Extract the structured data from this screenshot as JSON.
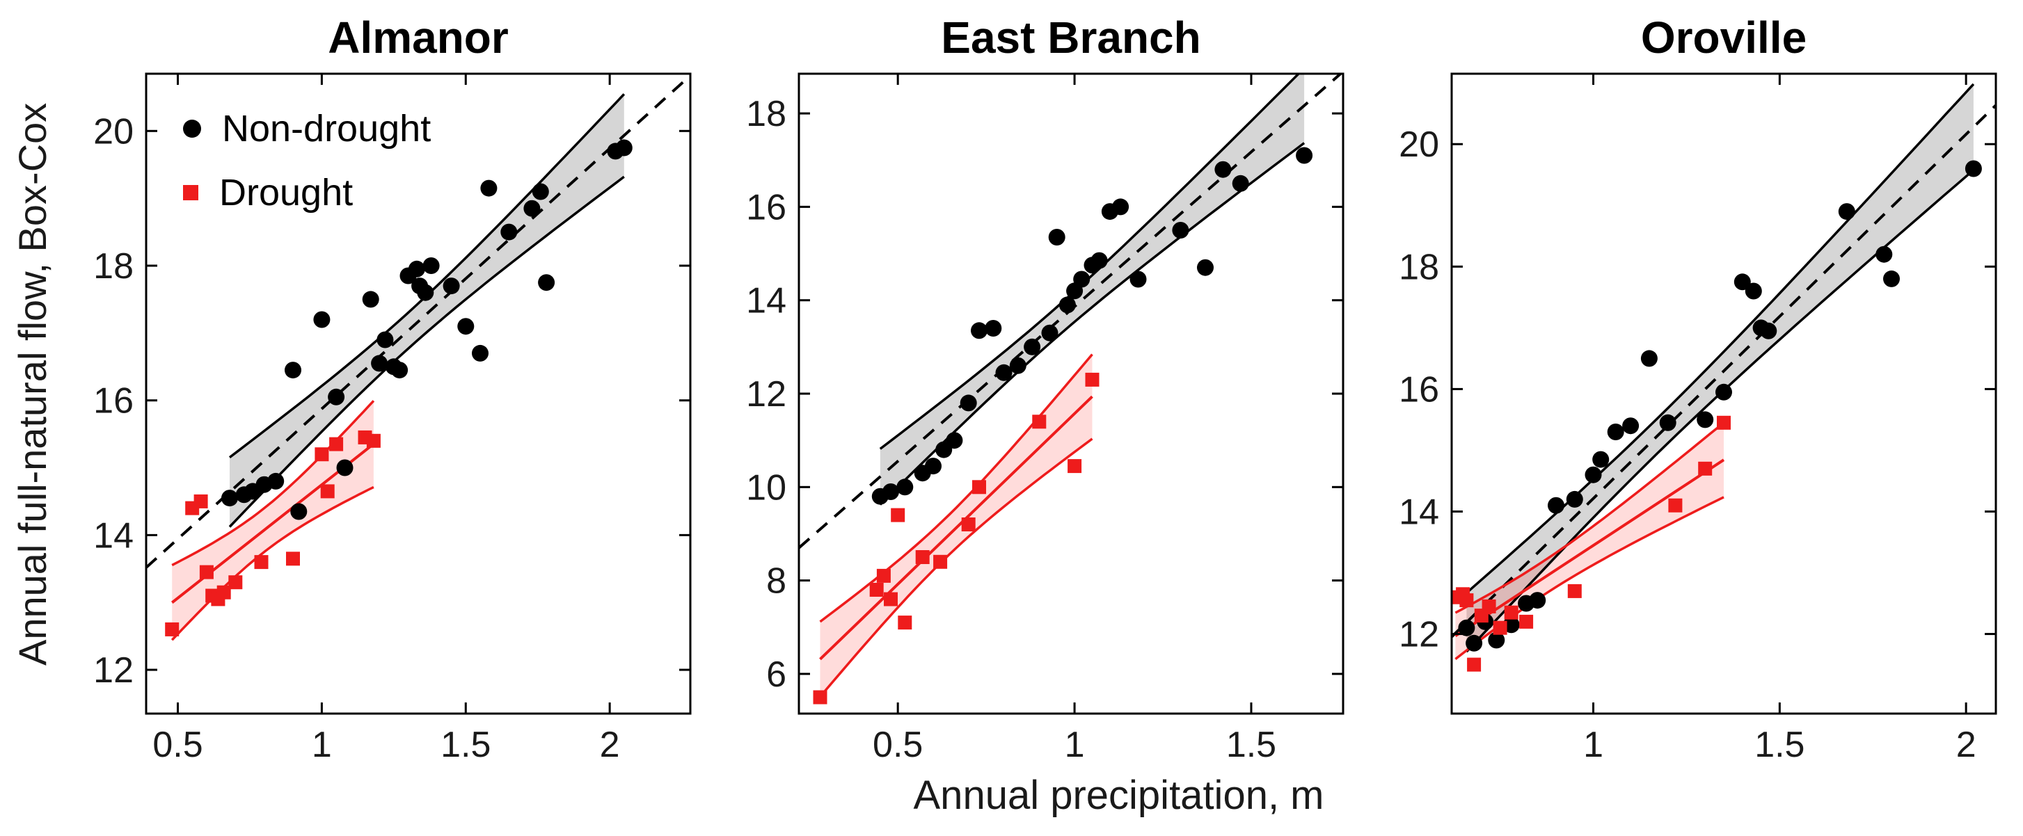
{
  "figure": {
    "xlabel": "Annual precipitation, m",
    "ylabel": "Annual full-natural flow, Box-Cox",
    "background": "#ffffff",
    "axis_color": "#000000",
    "tick_label_color": "#1a1a1a",
    "legend": {
      "items": [
        {
          "label": "Non-drought",
          "marker": "circle",
          "color": "#000000"
        },
        {
          "label": "Drought",
          "marker": "square",
          "color": "#ee1c1c"
        }
      ]
    }
  },
  "chart_data": [
    {
      "type": "scatter",
      "title": "Almanor",
      "xlim": [
        0.39,
        2.28
      ],
      "ylim": [
        11.35,
        20.85
      ],
      "xtick_values": [
        0.5,
        1,
        1.5,
        2
      ],
      "xtick_labels": [
        "0.5",
        "1",
        "1.5",
        "2"
      ],
      "ytick_values": [
        12,
        14,
        16,
        18,
        20
      ],
      "ytick_labels": [
        "12",
        "14",
        "16",
        "18",
        "20"
      ],
      "series": [
        {
          "name": "Non-drought",
          "marker": "circle",
          "color": "#000000",
          "band_color": "rgba(0,0,0,0.16)",
          "line_style": "dashed",
          "line_extends_full_range": true,
          "points": [
            [
              0.68,
              14.55
            ],
            [
              0.73,
              14.6
            ],
            [
              0.76,
              14.65
            ],
            [
              0.8,
              14.75
            ],
            [
              0.84,
              14.8
            ],
            [
              0.9,
              16.45
            ],
            [
              0.92,
              14.35
            ],
            [
              1.0,
              17.2
            ],
            [
              1.05,
              16.05
            ],
            [
              1.08,
              15.0
            ],
            [
              1.17,
              17.5
            ],
            [
              1.2,
              16.55
            ],
            [
              1.22,
              16.9
            ],
            [
              1.25,
              16.5
            ],
            [
              1.27,
              16.45
            ],
            [
              1.3,
              17.85
            ],
            [
              1.33,
              17.95
            ],
            [
              1.34,
              17.7
            ],
            [
              1.36,
              17.6
            ],
            [
              1.38,
              18.0
            ],
            [
              1.45,
              17.7
            ],
            [
              1.5,
              17.1
            ],
            [
              1.55,
              16.7
            ],
            [
              1.58,
              19.15
            ],
            [
              1.65,
              18.5
            ],
            [
              1.73,
              18.85
            ],
            [
              1.76,
              19.1
            ],
            [
              1.78,
              17.75
            ],
            [
              2.02,
              19.7
            ],
            [
              2.05,
              19.75
            ]
          ]
        },
        {
          "name": "Drought",
          "marker": "square",
          "color": "#ee1c1c",
          "band_color": "rgba(255,40,30,0.16)",
          "line_style": "solid",
          "line_extends_full_range": false,
          "points": [
            [
              0.48,
              12.6
            ],
            [
              0.55,
              14.4
            ],
            [
              0.58,
              14.5
            ],
            [
              0.6,
              13.45
            ],
            [
              0.62,
              13.1
            ],
            [
              0.64,
              13.05
            ],
            [
              0.66,
              13.15
            ],
            [
              0.7,
              13.3
            ],
            [
              0.79,
              13.6
            ],
            [
              0.9,
              13.65
            ],
            [
              1.0,
              15.2
            ],
            [
              1.02,
              14.65
            ],
            [
              1.05,
              15.35
            ],
            [
              1.15,
              15.45
            ],
            [
              1.18,
              15.4
            ]
          ]
        }
      ]
    },
    {
      "type": "scatter",
      "title": "East Branch",
      "xlim": [
        0.22,
        1.76
      ],
      "ylim": [
        5.15,
        18.85
      ],
      "xtick_values": [
        0.5,
        1,
        1.5
      ],
      "xtick_labels": [
        "0.5",
        "1",
        "1.5"
      ],
      "ytick_values": [
        6,
        8,
        10,
        12,
        14,
        16,
        18
      ],
      "ytick_labels": [
        "6",
        "8",
        "10",
        "12",
        "14",
        "16",
        "18"
      ],
      "series": [
        {
          "name": "Non-drought",
          "marker": "circle",
          "color": "#000000",
          "band_color": "rgba(0,0,0,0.16)",
          "line_style": "dashed",
          "line_extends_full_range": true,
          "points": [
            [
              0.45,
              9.8
            ],
            [
              0.48,
              9.9
            ],
            [
              0.52,
              10.0
            ],
            [
              0.57,
              10.3
            ],
            [
              0.6,
              10.45
            ],
            [
              0.63,
              10.8
            ],
            [
              0.66,
              11.0
            ],
            [
              0.7,
              11.8
            ],
            [
              0.73,
              13.35
            ],
            [
              0.77,
              13.4
            ],
            [
              0.8,
              12.45
            ],
            [
              0.84,
              12.6
            ],
            [
              0.88,
              13.0
            ],
            [
              0.93,
              13.3
            ],
            [
              0.95,
              15.35
            ],
            [
              0.98,
              13.9
            ],
            [
              1.0,
              14.2
            ],
            [
              1.02,
              14.45
            ],
            [
              1.05,
              14.75
            ],
            [
              1.07,
              14.85
            ],
            [
              1.1,
              15.9
            ],
            [
              1.13,
              16.0
            ],
            [
              1.18,
              14.45
            ],
            [
              1.3,
              15.5
            ],
            [
              1.37,
              14.7
            ],
            [
              1.42,
              16.8
            ],
            [
              1.47,
              16.5
            ],
            [
              1.65,
              17.1
            ]
          ]
        },
        {
          "name": "Drought",
          "marker": "square",
          "color": "#ee1c1c",
          "band_color": "rgba(255,40,30,0.16)",
          "line_style": "solid",
          "line_extends_full_range": false,
          "points": [
            [
              0.28,
              5.5
            ],
            [
              0.44,
              7.8
            ],
            [
              0.46,
              8.1
            ],
            [
              0.48,
              7.6
            ],
            [
              0.5,
              9.4
            ],
            [
              0.52,
              7.1
            ],
            [
              0.57,
              8.5
            ],
            [
              0.62,
              8.4
            ],
            [
              0.7,
              9.2
            ],
            [
              0.73,
              10.0
            ],
            [
              0.9,
              11.4
            ],
            [
              1.0,
              10.45
            ],
            [
              1.05,
              12.3
            ]
          ]
        }
      ]
    },
    {
      "type": "scatter",
      "title": "Oroville",
      "xlim": [
        0.62,
        2.08
      ],
      "ylim": [
        10.7,
        21.15
      ],
      "xtick_values": [
        1,
        1.5,
        2
      ],
      "xtick_labels": [
        "1",
        "1.5",
        "2"
      ],
      "ytick_values": [
        12,
        14,
        16,
        18,
        20
      ],
      "ytick_labels": [
        "12",
        "14",
        "16",
        "18",
        "20"
      ],
      "series": [
        {
          "name": "Non-drought",
          "marker": "circle",
          "color": "#000000",
          "band_color": "rgba(0,0,0,0.16)",
          "line_style": "dashed",
          "line_extends_full_range": true,
          "points": [
            [
              0.66,
              12.1
            ],
            [
              0.68,
              11.85
            ],
            [
              0.71,
              12.2
            ],
            [
              0.74,
              11.9
            ],
            [
              0.78,
              12.15
            ],
            [
              0.82,
              12.5
            ],
            [
              0.85,
              12.55
            ],
            [
              0.9,
              14.1
            ],
            [
              0.95,
              14.2
            ],
            [
              1.0,
              14.6
            ],
            [
              1.02,
              14.85
            ],
            [
              1.06,
              15.3
            ],
            [
              1.1,
              15.4
            ],
            [
              1.15,
              16.5
            ],
            [
              1.2,
              15.45
            ],
            [
              1.3,
              15.5
            ],
            [
              1.35,
              15.95
            ],
            [
              1.4,
              17.75
            ],
            [
              1.43,
              17.6
            ],
            [
              1.45,
              17.0
            ],
            [
              1.47,
              16.95
            ],
            [
              1.68,
              18.9
            ],
            [
              1.78,
              18.2
            ],
            [
              1.8,
              17.8
            ],
            [
              2.02,
              19.6
            ]
          ]
        },
        {
          "name": "Drought",
          "marker": "square",
          "color": "#ee1c1c",
          "band_color": "rgba(255,40,30,0.16)",
          "line_style": "solid",
          "line_extends_full_range": false,
          "points": [
            [
              0.63,
              12.6
            ],
            [
              0.65,
              12.65
            ],
            [
              0.66,
              12.55
            ],
            [
              0.68,
              11.5
            ],
            [
              0.7,
              12.3
            ],
            [
              0.72,
              12.45
            ],
            [
              0.75,
              12.1
            ],
            [
              0.78,
              12.35
            ],
            [
              0.82,
              12.2
            ],
            [
              0.95,
              12.7
            ],
            [
              1.22,
              14.1
            ],
            [
              1.3,
              14.7
            ],
            [
              1.35,
              15.45
            ]
          ]
        }
      ]
    }
  ]
}
